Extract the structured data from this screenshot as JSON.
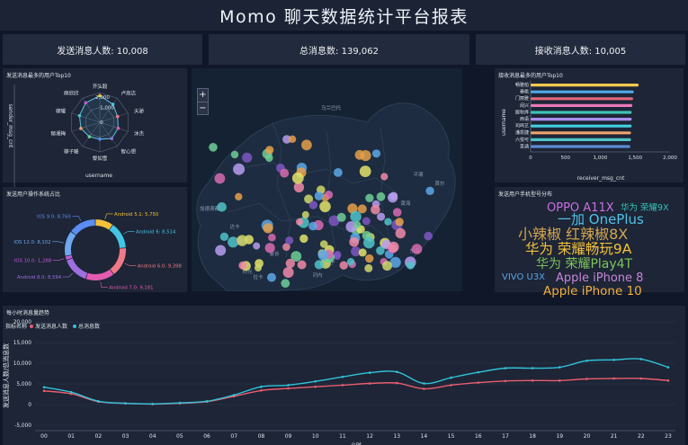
{
  "header": {
    "title": "Momo 聊天数据统计平台报表"
  },
  "kpis": [
    {
      "label": "发送消息人数: 10,008"
    },
    {
      "label": "总消息数: 139,062"
    },
    {
      "label": "接收消息人数: 10,005"
    }
  ],
  "radar": {
    "title": "发送消息最多的用户Top10",
    "y_axis_name": "sender_msg_cnt",
    "x_axis_name": "username",
    "ring_labels": [
      "2,000",
      "1,000",
      "0"
    ],
    "names": [
      "齐弘毅",
      "卢高达",
      "天骄",
      "沐杰",
      "智心想",
      "黎如雪",
      "柳子暖",
      "郁湘梅",
      "柳耀",
      "麻欣欣"
    ],
    "values": [
      1790,
      1500,
      1260,
      1300,
      1360,
      1140,
      1200,
      1340,
      1440,
      1620
    ],
    "color": "#5bc0de"
  },
  "map": {
    "zoom_in_label": "+",
    "zoom_out_label": "−",
    "place_labels": [
      "乌兰巴托",
      "平壤",
      "首尔",
      "黄海",
      "东海",
      "曼谷",
      "河内",
      "仰光",
      "达卡",
      "加德满都",
      "拉卡",
      "南宁"
    ],
    "point_colors": [
      "#e5a04a",
      "#d86bb0",
      "#7e57c2",
      "#4fc3c8",
      "#e3e36a",
      "#6fcf97",
      "#f08ba8",
      "#b79df0",
      "#5da8e8",
      "#cfd86b"
    ]
  },
  "receiver": {
    "title": "接收消息最多的用户Top10",
    "y_axis_name": "username",
    "x_axis_name": "receiver_msg_cnt",
    "x_ticks": [
      "0",
      "500",
      "1,000",
      "1,500",
      "2,000"
    ]
  },
  "pie": {
    "title": "发送用户操作系统占比",
    "label_color": "#9fc8ff"
  },
  "cloud": {
    "title": "发送用户手机型号分布",
    "words": [
      {
        "text": "OPPO A11X",
        "color": "#c86fe0"
      },
      {
        "text": "华为 荣耀9X",
        "color": "#34c3b5"
      },
      {
        "text": "一加 OnePlus",
        "color": "#4fc1e9"
      },
      {
        "text": "小辣椒 红辣椒8X",
        "color": "#d4a650"
      },
      {
        "text": "华为 荣耀畅玩9A",
        "color": "#f3c13a"
      },
      {
        "text": "华为 荣耀Play4T",
        "color": "#7ec45a"
      },
      {
        "text": "VIVO U3X",
        "color": "#57a6e6"
      },
      {
        "text": "Apple iPhone 8",
        "color": "#c985d9"
      },
      {
        "text": "Apple iPhone 10",
        "color": "#f2ae3e"
      }
    ]
  },
  "hourly": {
    "title": "每小时消息量趋势",
    "legend_prefix": "指标名称",
    "y_axis_name": "发送消息人数/总消息数",
    "x_axis_name": "小时"
  },
  "chart_data": [
    {
      "type": "bar",
      "title": "接收消息最多的用户Top10",
      "orientation": "horizontal",
      "categories": [
        "畅雅柏",
        "春桃",
        "门丽雅",
        "闵兴",
        "殷秋烨",
        "西语",
        "司鸣艺",
        "潘凯捷",
        "六悦可",
        "圣涵"
      ],
      "values": [
        1550,
        1480,
        1470,
        1460,
        1450,
        1450,
        1450,
        1440,
        1440,
        1430
      ],
      "xlim": [
        0,
        2000
      ],
      "xlabel": "receiver_msg_cnt",
      "ylabel": "username",
      "colors": [
        "#f2c94c",
        "#4fa8e8",
        "#e5677d",
        "#e879b7",
        "#3fc1b3",
        "#a98ff0",
        "#43d0e0",
        "#f2a36b",
        "#4fc3c8",
        "#5b8bd6"
      ]
    },
    {
      "type": "pie",
      "title": "发送用户操作系统占比",
      "donut": true,
      "slices": [
        {
          "label": "Android 5.1",
          "value": 5750,
          "color": "#f3c13a",
          "display": "Android 5.1: 5,750"
        },
        {
          "label": "Android 6",
          "value": 8514,
          "color": "#43c6e6",
          "display": "Android 6: 8,514"
        },
        {
          "label": "Android 6.0",
          "value": 9398,
          "color": "#ef7a87",
          "display": "Android 6.0: 9,398"
        },
        {
          "label": "Android 7.0",
          "value": 9181,
          "color": "#e35bb0",
          "display": "Android 7.0: 9,181"
        },
        {
          "label": "Android 8.0",
          "value": 8594,
          "color": "#9d6fe0",
          "display": "Android 8.0: 8,594"
        },
        {
          "label": "IOS 10.0",
          "value": 1288,
          "color": "#c65bd6",
          "display": "IOS 10.0: 1,288"
        },
        {
          "label": "IOS 12.0",
          "value": 8102,
          "color": "#6fa7f0",
          "display": "IOS 12.0: 8,102"
        },
        {
          "label": "IOS 9.0",
          "value": 8760,
          "color": "#5b8df5",
          "display": "IOS 9.0: 8,760"
        }
      ]
    },
    {
      "type": "line",
      "title": "每小时消息量趋势",
      "x": [
        "00",
        "01",
        "02",
        "03",
        "04",
        "05",
        "06",
        "07",
        "08",
        "09",
        "10",
        "11",
        "12",
        "13",
        "14",
        "15",
        "16",
        "17",
        "18",
        "19",
        "20",
        "21",
        "22",
        "23"
      ],
      "series": [
        {
          "name": "发送消息人数",
          "color": "#e85d6f",
          "values": [
            3300,
            2600,
            700,
            300,
            100,
            300,
            700,
            2000,
            3400,
            3900,
            4300,
            4700,
            5100,
            5200,
            3800,
            4700,
            5300,
            5700,
            5800,
            5800,
            6200,
            6300,
            6300,
            5800
          ]
        },
        {
          "name": "总消息数",
          "color": "#32c2d8",
          "values": [
            4200,
            3000,
            800,
            300,
            150,
            400,
            800,
            2300,
            4300,
            4700,
            5600,
            6700,
            7700,
            7900,
            5100,
            6500,
            7800,
            8800,
            8800,
            9000,
            10600,
            10800,
            11000,
            9000
          ]
        }
      ],
      "yticks": [
        "20,000",
        "15,000",
        "10,000",
        "5,000",
        "0",
        "-5,000"
      ],
      "ylim": [
        -5000,
        20000
      ],
      "xlabel": "小时",
      "ylabel": "发送消息人数/总消息数",
      "legend_position": "top-left"
    }
  ]
}
